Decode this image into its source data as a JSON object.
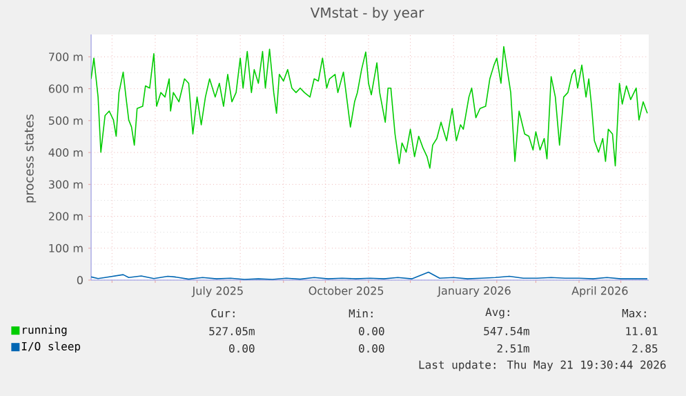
{
  "chart_data": {
    "type": "line",
    "title": "VMstat - by year",
    "ylabel": "process states",
    "xlim": [
      "2025-04-16",
      "2026-05-21"
    ],
    "xticks": [
      {
        "value": "2025-05-01",
        "label": null
      },
      {
        "value": "2025-06-01",
        "label": null
      },
      {
        "value": "2025-07-01",
        "label": null
      },
      {
        "value": "2025-08-01",
        "label": null
      },
      {
        "value": "2025-09-01",
        "label": null
      },
      {
        "value": "2025-10-01",
        "label": null
      },
      {
        "value": "2025-11-01",
        "label": null
      },
      {
        "value": "2025-12-01",
        "label": null
      },
      {
        "value": "2026-01-01",
        "label": null
      },
      {
        "value": "2026-02-01",
        "label": null
      },
      {
        "value": "2026-03-01",
        "label": null
      },
      {
        "value": "2026-04-01",
        "label": null
      },
      {
        "value": "2026-05-01",
        "label": null
      },
      {
        "value": "2025-07-16",
        "label": "July 2025"
      },
      {
        "value": "2025-10-16",
        "label": "October 2025"
      },
      {
        "value": "2026-01-16",
        "label": "January 2026"
      },
      {
        "value": "2026-04-16",
        "label": "April 2026"
      }
    ],
    "ylim": [
      0,
      770
    ],
    "yticks": [
      0,
      {
        "value": 100,
        "label": "100 m"
      },
      {
        "value": 200,
        "label": "200 m"
      },
      {
        "value": 300,
        "label": "300 m"
      },
      {
        "value": 400,
        "label": "400 m"
      },
      {
        "value": 500,
        "label": "500 m"
      },
      {
        "value": 600,
        "label": "600 m"
      },
      {
        "value": 700,
        "label": "700 m"
      }
    ],
    "grid": true,
    "legend": "bottom",
    "series": [
      {
        "name": "running",
        "color": "#00cc00",
        "x": [
          "2025-04-16",
          "2025-04-18",
          "2025-04-21",
          "2025-04-23",
          "2025-04-26",
          "2025-04-29",
          "2025-05-02",
          "2025-05-04",
          "2025-05-06",
          "2025-05-09",
          "2025-05-11",
          "2025-05-13",
          "2025-05-15",
          "2025-05-17",
          "2025-05-19",
          "2025-05-23",
          "2025-05-25",
          "2025-05-28",
          "2025-05-31",
          "2025-06-02",
          "2025-06-05",
          "2025-06-08",
          "2025-06-11",
          "2025-06-12",
          "2025-06-14",
          "2025-06-18",
          "2025-06-22",
          "2025-06-25",
          "2025-06-28",
          "2025-07-01",
          "2025-07-04",
          "2025-07-07",
          "2025-07-10",
          "2025-07-14",
          "2025-07-17",
          "2025-07-20",
          "2025-07-23",
          "2025-07-26",
          "2025-07-29",
          "2025-08-01",
          "2025-08-03",
          "2025-08-06",
          "2025-08-09",
          "2025-08-11",
          "2025-08-14",
          "2025-08-17",
          "2025-08-19",
          "2025-08-22",
          "2025-08-25",
          "2025-08-27",
          "2025-08-29",
          "2025-09-01",
          "2025-09-04",
          "2025-09-07",
          "2025-09-10",
          "2025-09-13",
          "2025-09-16",
          "2025-09-20",
          "2025-09-23",
          "2025-09-26",
          "2025-09-29",
          "2025-10-02",
          "2025-10-04",
          "2025-10-08",
          "2025-10-10",
          "2025-10-14",
          "2025-10-19",
          "2025-10-22",
          "2025-10-24",
          "2025-10-27",
          "2025-10-30",
          "2025-11-01",
          "2025-11-03",
          "2025-11-07",
          "2025-11-09",
          "2025-11-13",
          "2025-11-15",
          "2025-11-17",
          "2025-11-20",
          "2025-11-23",
          "2025-11-25",
          "2025-11-28",
          "2025-12-01",
          "2025-12-04",
          "2025-12-07",
          "2025-12-10",
          "2025-12-13",
          "2025-12-15",
          "2025-12-17",
          "2025-12-20",
          "2025-12-23",
          "2025-12-27",
          "2025-12-31",
          "2026-01-03",
          "2026-01-06",
          "2026-01-08",
          "2026-01-12",
          "2026-01-14",
          "2026-01-17",
          "2026-01-20",
          "2026-01-24",
          "2026-01-27",
          "2026-01-30",
          "2026-02-01",
          "2026-02-04",
          "2026-02-06",
          "2026-02-09",
          "2026-02-11",
          "2026-02-14",
          "2026-02-17",
          "2026-02-21",
          "2026-02-24",
          "2026-02-27",
          "2026-03-01",
          "2026-03-04",
          "2026-03-07",
          "2026-03-09",
          "2026-03-12",
          "2026-03-15",
          "2026-03-18",
          "2026-03-21",
          "2026-03-24",
          "2026-03-27",
          "2026-03-29",
          "2026-03-31",
          "2026-04-03",
          "2026-04-06",
          "2026-04-08",
          "2026-04-10",
          "2026-04-12",
          "2026-04-15",
          "2026-04-18",
          "2026-04-20",
          "2026-04-22",
          "2026-04-25",
          "2026-04-27",
          "2026-04-30",
          "2026-05-02",
          "2026-05-05",
          "2026-05-08",
          "2026-05-12",
          "2026-05-14",
          "2026-05-17",
          "2026-05-20"
        ],
        "values": [
          631,
          696,
          574,
          401,
          516,
          530,
          502,
          451,
          588,
          652,
          574,
          502,
          480,
          423,
          538,
          545,
          609,
          602,
          710,
          545,
          588,
          574,
          631,
          530,
          588,
          559,
          631,
          617,
          458,
          574,
          487,
          574,
          631,
          574,
          617,
          545,
          645,
          559,
          588,
          696,
          602,
          717,
          588,
          660,
          617,
          717,
          602,
          724,
          588,
          523,
          645,
          624,
          660,
          602,
          588,
          602,
          588,
          574,
          631,
          624,
          696,
          602,
          631,
          645,
          588,
          652,
          480,
          559,
          588,
          660,
          715,
          617,
          581,
          681,
          588,
          495,
          602,
          602,
          458,
          365,
          430,
          401,
          473,
          387,
          451,
          415,
          387,
          351,
          423,
          444,
          495,
          437,
          538,
          437,
          487,
          473,
          574,
          602,
          509,
          538,
          545,
          631,
          674,
          696,
          617,
          732,
          645,
          588,
          372,
          530,
          458,
          451,
          408,
          465,
          408,
          444,
          380,
          638,
          574,
          423,
          574,
          588,
          645,
          660,
          602,
          674,
          574,
          631,
          545,
          437,
          401,
          444,
          372,
          473,
          458,
          358,
          617,
          552,
          609,
          566,
          602,
          502,
          559,
          523
        ]
      },
      {
        "name": "I/O sleep",
        "color": "#0066b3",
        "x": [
          "2025-04-16",
          "2025-04-21",
          "2025-04-26",
          "2025-05-09",
          "2025-05-13",
          "2025-05-22",
          "2025-05-31",
          "2025-06-10",
          "2025-06-15",
          "2025-06-25",
          "2025-07-05",
          "2025-07-15",
          "2025-07-25",
          "2025-08-04",
          "2025-08-14",
          "2025-08-24",
          "2025-09-03",
          "2025-09-13",
          "2025-09-23",
          "2025-10-03",
          "2025-10-13",
          "2025-10-23",
          "2025-11-02",
          "2025-11-12",
          "2025-11-22",
          "2025-12-02",
          "2025-12-14",
          "2025-12-22",
          "2026-01-01",
          "2026-01-11",
          "2026-01-21",
          "2026-01-31",
          "2026-02-10",
          "2026-02-20",
          "2026-03-02",
          "2026-03-12",
          "2026-03-22",
          "2026-04-01",
          "2026-04-11",
          "2026-04-21",
          "2026-05-01",
          "2026-05-11",
          "2026-05-20"
        ],
        "values": [
          10,
          5,
          8,
          17,
          8,
          13,
          5,
          12,
          10,
          3,
          8,
          4,
          6,
          2,
          4,
          2,
          6,
          3,
          8,
          4,
          6,
          4,
          6,
          4,
          8,
          4,
          25,
          6,
          8,
          4,
          6,
          8,
          12,
          6,
          6,
          8,
          6,
          6,
          4,
          8,
          4,
          4,
          4
        ]
      }
    ],
    "annotations": [
      "Cur:",
      "Min:",
      "Avg:",
      "Max:",
      "527.05m",
      "0.00",
      "547.54m",
      "11.01",
      "0.00",
      "0.00",
      "2.51m",
      "2.85",
      "Last update: Thu May 21 19:30:44 2026"
    ]
  }
}
